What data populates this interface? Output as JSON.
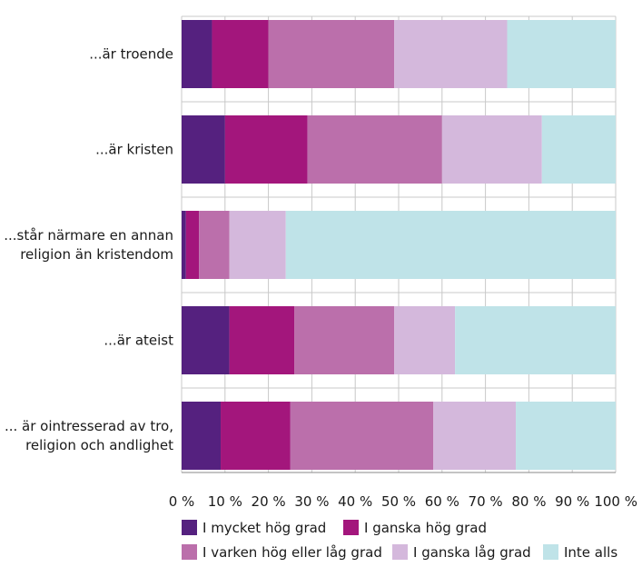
{
  "chart_data": {
    "type": "bar",
    "orientation": "horizontal",
    "stacked": true,
    "categories": [
      [
        "...är troende"
      ],
      [
        "...är kristen"
      ],
      [
        "...står närmare en annan",
        "religion än kristendom"
      ],
      [
        "...är ateist"
      ],
      [
        "... är ointresserad av tro,",
        "religion och andlighet"
      ]
    ],
    "series": [
      {
        "name": "I mycket hög grad",
        "color": "#55217f",
        "values": [
          7,
          10,
          1,
          11,
          9
        ]
      },
      {
        "name": "I ganska hög grad",
        "color": "#a3167c",
        "values": [
          13,
          19,
          3,
          15,
          16
        ]
      },
      {
        "name": "I varken hög eller låg grad",
        "color": "#bb6fab",
        "values": [
          29,
          31,
          7,
          23,
          33
        ]
      },
      {
        "name": "I ganska låg grad",
        "color": "#d4b8dc",
        "values": [
          26,
          23,
          13,
          14,
          19
        ]
      },
      {
        "name": "Inte alls",
        "color": "#bfe3e8",
        "values": [
          25,
          17,
          76,
          37,
          23
        ]
      }
    ],
    "xlim": [
      0,
      100
    ],
    "xticks": [
      "0 %",
      "10 %",
      "20 %",
      "30 %",
      "40 %",
      "50 %",
      "60 %",
      "70 %",
      "80 %",
      "90 %",
      "100 %"
    ],
    "title": "",
    "xlabel": "",
    "ylabel": "",
    "grid": "vertical",
    "legend_position": "bottom"
  }
}
